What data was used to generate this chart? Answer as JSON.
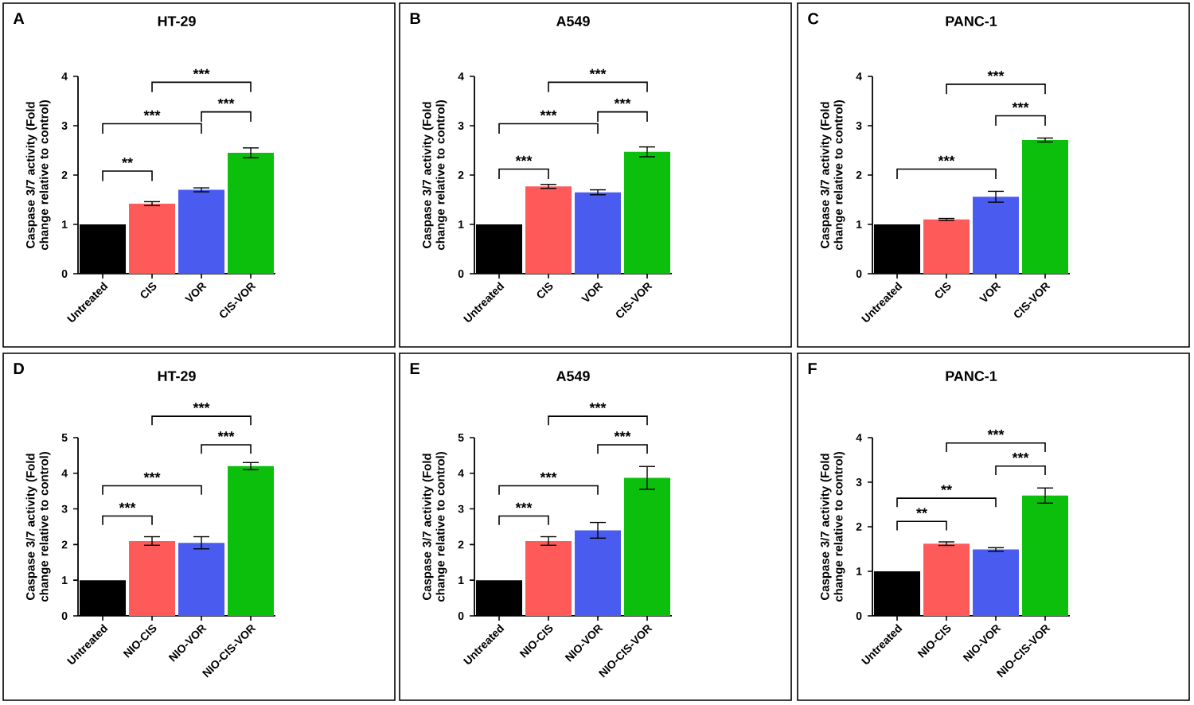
{
  "chart_data": [
    {
      "type": "bar",
      "title": "HT-29",
      "ylabel": "Caspase 3/7 activity (Fold change relative to control)",
      "categories": [
        "Untreated",
        "CIS",
        "VOR",
        "CIS-VOR"
      ],
      "values": [
        1,
        1.42,
        1.7,
        2.45
      ],
      "errors": [
        null,
        0.04,
        0.04,
        0.1
      ],
      "colors": [
        "#000000",
        "#ff5a5a",
        "#4a5cf0",
        "#0dbf0d"
      ],
      "ylim": [
        0,
        4
      ],
      "yticks": [
        0,
        1,
        2,
        3,
        4
      ],
      "annotations": [
        "A",
        "**",
        "***",
        "***",
        "***"
      ]
    },
    {
      "type": "bar",
      "title": "A549",
      "ylabel": "Caspase 3/7 activity (Fold change relative to control)",
      "categories": [
        "Untreated",
        "CIS",
        "VOR",
        "CIS-VOR"
      ],
      "values": [
        1,
        1.77,
        1.65,
        2.47
      ],
      "errors": [
        null,
        0.04,
        0.05,
        0.1
      ],
      "colors": [
        "#000000",
        "#ff5a5a",
        "#4a5cf0",
        "#0dbf0d"
      ],
      "ylim": [
        0,
        4
      ],
      "yticks": [
        0,
        1,
        2,
        3,
        4
      ],
      "annotations": [
        "B",
        "***",
        "***",
        "***",
        "***"
      ]
    },
    {
      "type": "bar",
      "title": "PANC-1",
      "ylabel": "Caspase 3/7 activity (Fold change relative to control)",
      "categories": [
        "Untreated",
        "CIS",
        "VOR",
        "CIS-VOR"
      ],
      "values": [
        1,
        1.1,
        1.56,
        2.71
      ],
      "errors": [
        null,
        0.02,
        0.11,
        0.04
      ],
      "colors": [
        "#000000",
        "#ff5a5a",
        "#4a5cf0",
        "#0dbf0d"
      ],
      "ylim": [
        0,
        4
      ],
      "yticks": [
        0,
        1,
        2,
        3,
        4
      ],
      "annotations": [
        "C",
        "***",
        "***",
        "***"
      ]
    },
    {
      "type": "bar",
      "title": "HT-29",
      "ylabel": "Caspase 3/7 activity (Fold change relative to control)",
      "categories": [
        "Untreated",
        "NIO-CIS",
        "NIO-VOR",
        "NIO-CIS-VOR"
      ],
      "values": [
        1,
        2.1,
        2.05,
        4.2
      ],
      "errors": [
        null,
        0.12,
        0.17,
        0.1
      ],
      "colors": [
        "#000000",
        "#ff5a5a",
        "#4a5cf0",
        "#0dbf0d"
      ],
      "ylim": [
        0,
        5
      ],
      "yticks": [
        0,
        1,
        2,
        3,
        4,
        5
      ],
      "annotations": [
        "D",
        "***",
        "***",
        "***",
        "***"
      ]
    },
    {
      "type": "bar",
      "title": "A549",
      "ylabel": "Caspase 3/7 activity (Fold change relative to control)",
      "categories": [
        "Untreated",
        "NIO-CIS",
        "NIO-VOR",
        "NIO-CIS-VOR"
      ],
      "values": [
        1,
        2.1,
        2.4,
        3.87
      ],
      "errors": [
        null,
        0.12,
        0.22,
        0.32
      ],
      "colors": [
        "#000000",
        "#ff5a5a",
        "#4a5cf0",
        "#0dbf0d"
      ],
      "ylim": [
        0,
        5
      ],
      "yticks": [
        0,
        1,
        2,
        3,
        4,
        5
      ],
      "annotations": [
        "E",
        "***",
        "***",
        "***",
        "***"
      ]
    },
    {
      "type": "bar",
      "title": "PANC-1",
      "ylabel": "Caspase 3/7 activity (Fold change relative to control)",
      "categories": [
        "Untreated",
        "NIO-CIS",
        "NIO-VOR",
        "NIO-CIS-VOR"
      ],
      "values": [
        1,
        1.62,
        1.49,
        2.7
      ],
      "errors": [
        null,
        0.04,
        0.04,
        0.17
      ],
      "colors": [
        "#000000",
        "#ff5a5a",
        "#4a5cf0",
        "#0dbf0d"
      ],
      "ylim": [
        0,
        4
      ],
      "yticks": [
        0,
        1,
        2,
        3,
        4
      ],
      "annotations": [
        "F",
        "**",
        "**",
        "***",
        "***"
      ]
    }
  ]
}
